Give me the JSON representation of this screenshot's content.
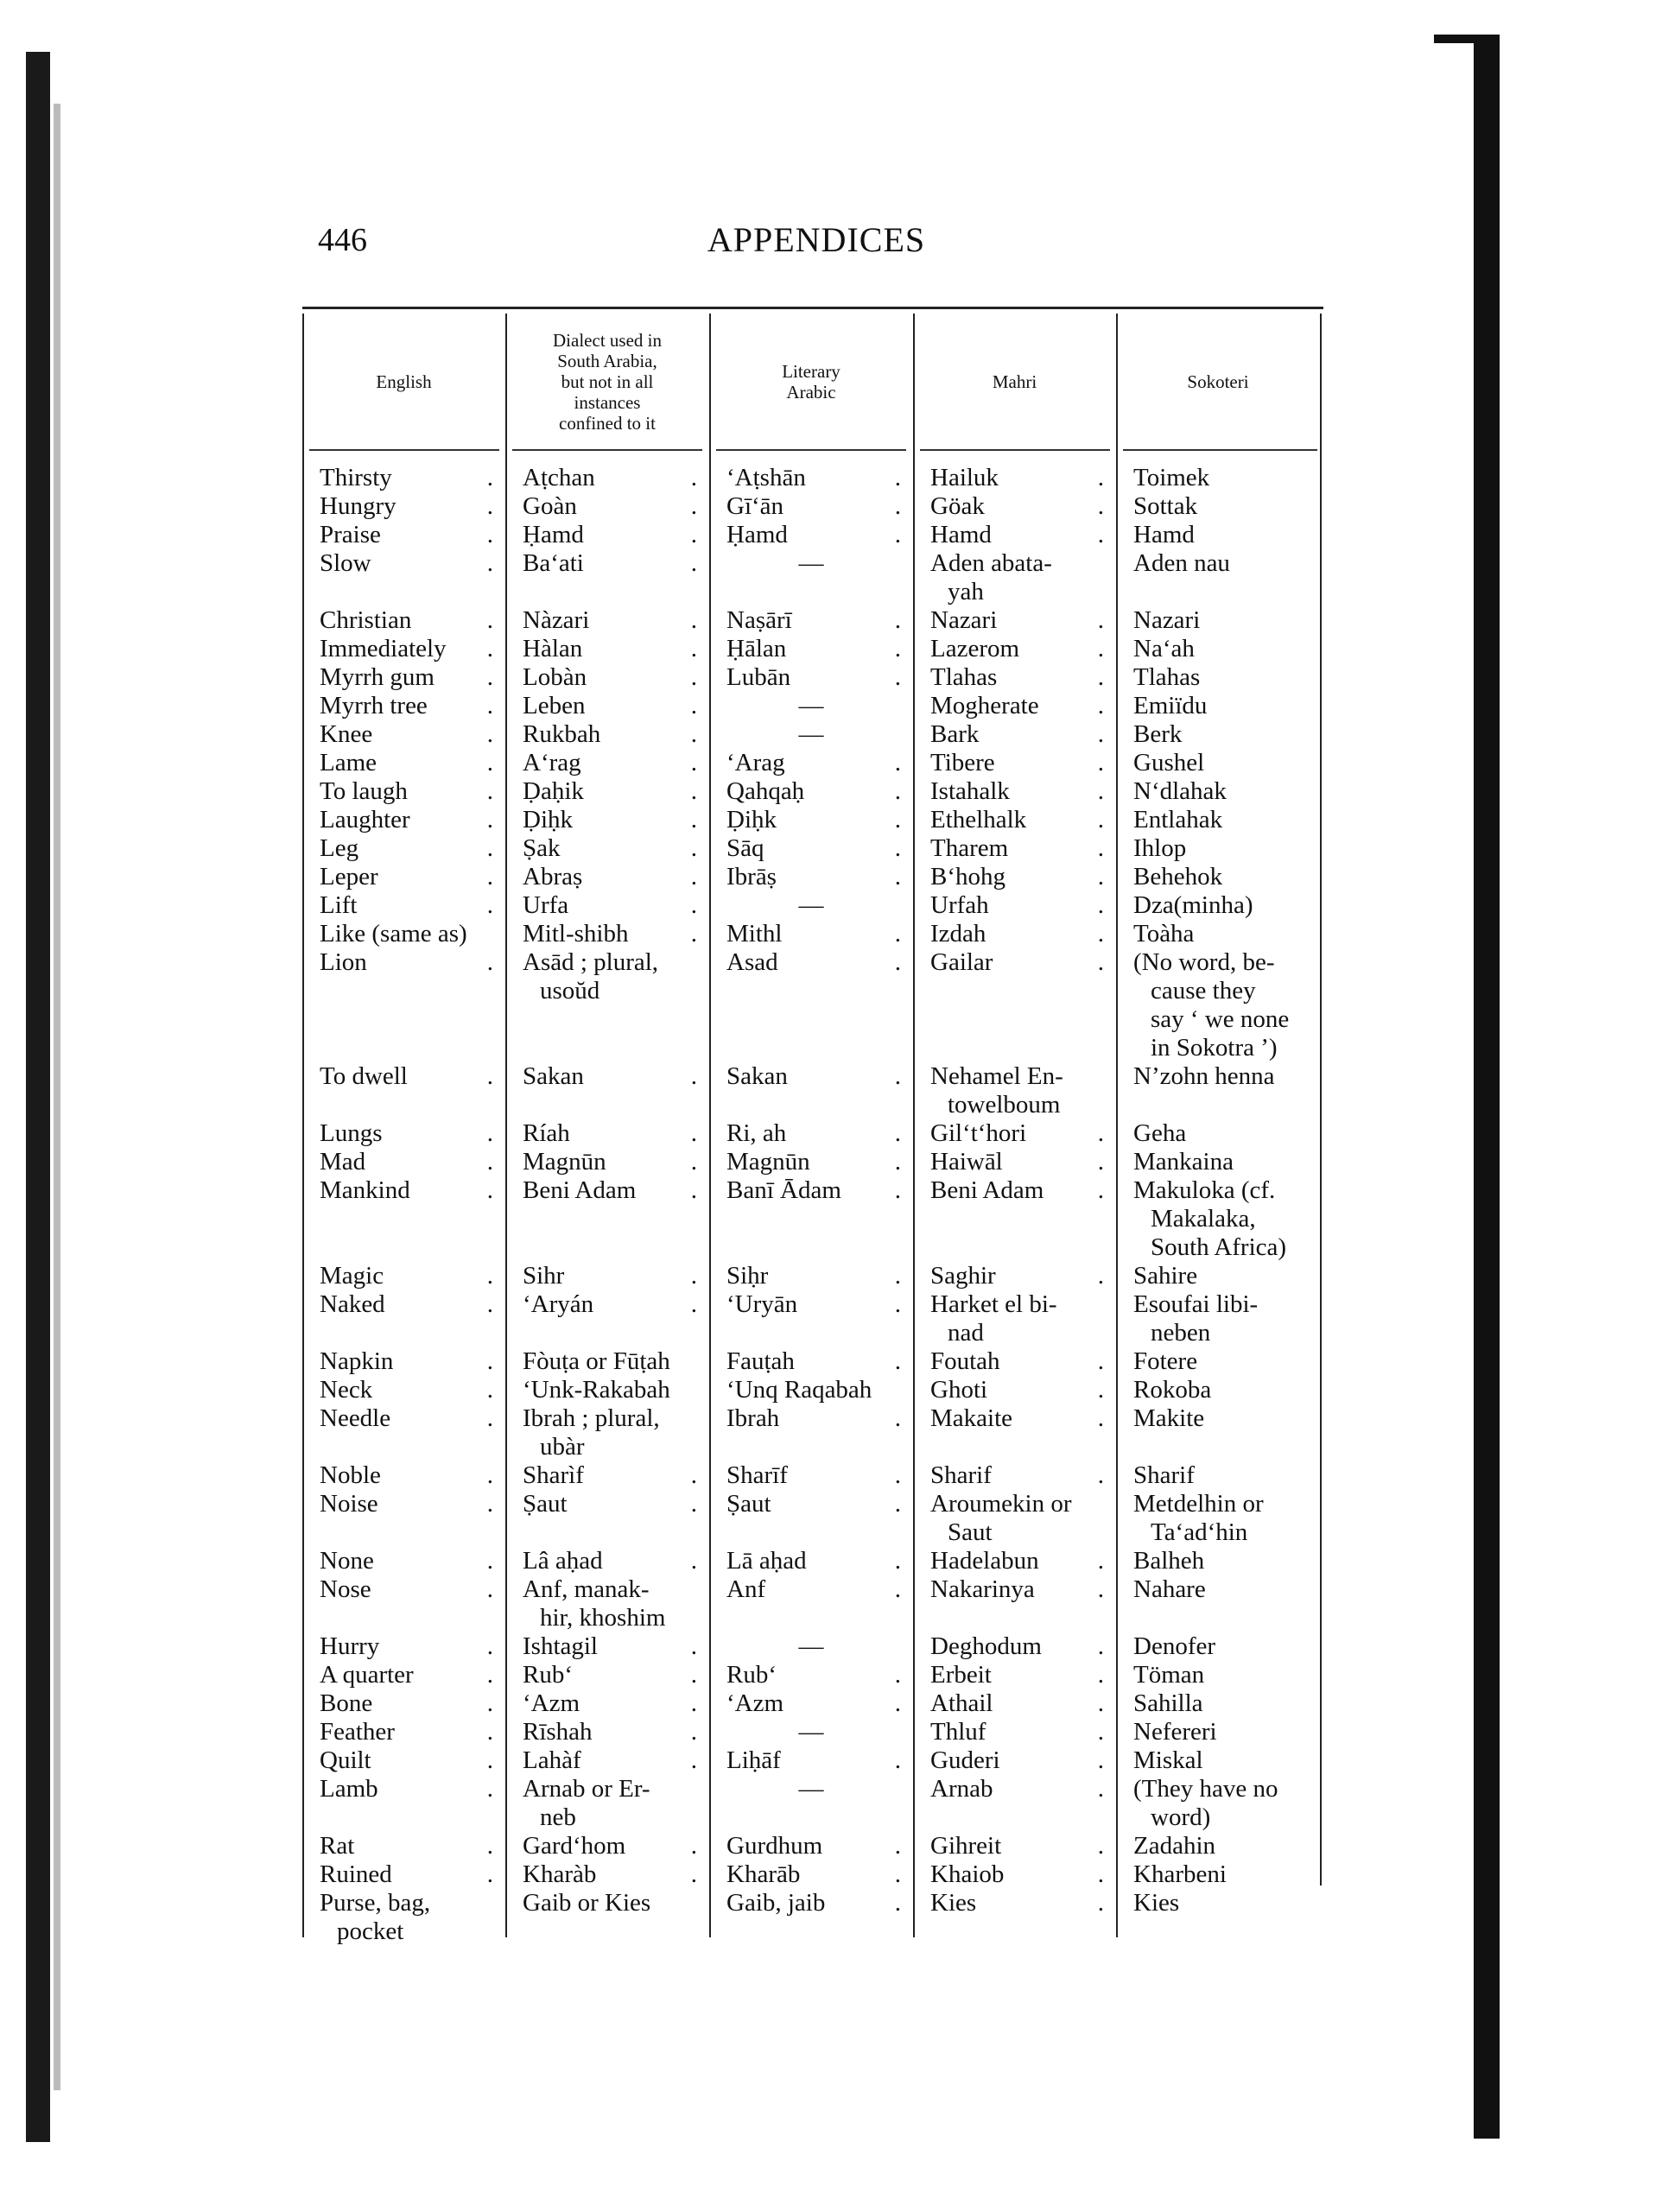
{
  "page": {
    "number": "446",
    "running_head": "APPENDICES"
  },
  "table": {
    "headers": [
      "English",
      "Dialect used in\nSouth Arabia,\nbut not in all\ninstances\nconfined to it",
      "Literary\nArabic",
      "Mahri",
      "Sokoteri"
    ],
    "rows": [
      [
        "Thirsty",
        "Aṭchan",
        "‘Aṭshān",
        "Hailuk",
        "Toimek"
      ],
      [
        "Hungry",
        "Goàn",
        "Gī‘ān",
        "Göak",
        "Sottak"
      ],
      [
        "Praise",
        "Ḥamd",
        "Ḥamd",
        "Hamd",
        "Hamd"
      ],
      [
        "Slow",
        "Ba‘ati",
        "—",
        "Aden abata-\nyah",
        "Aden nau"
      ],
      [
        "Christian",
        "Nàzari",
        "Naṣārī",
        "Nazari",
        "Nazari"
      ],
      [
        "Immediately",
        "Hàlan",
        "Ḥālan",
        "Lazerom",
        "Na‘ah"
      ],
      [
        "Myrrh gum",
        "Lobàn",
        "Lubān",
        "Tlahas",
        "Tlahas"
      ],
      [
        "Myrrh tree",
        "Leben",
        "—",
        "Mogherate",
        "Emiïdu"
      ],
      [
        "Knee",
        "Rukbah",
        "—",
        "Bark",
        "Berk"
      ],
      [
        "Lame",
        "A‘rag",
        "‘Arag",
        "Tibere",
        "Gushel"
      ],
      [
        "To laugh",
        "Ḍaḥik",
        "Qahqaḥ",
        "Istahalk",
        "N‘dlahak"
      ],
      [
        "Laughter",
        "Ḍiḥk",
        "Ḍiḥk",
        "Ethelhalk",
        "Entlahak"
      ],
      [
        "Leg",
        "Ṣak",
        "Sāq",
        "Tharem",
        "Ihlop"
      ],
      [
        "Leper",
        "Abraṣ",
        "Ibrāṣ",
        "B‘hohg",
        "Behehok"
      ],
      [
        "Lift",
        "Urfa",
        "—",
        "Urfah",
        "Dza(minha)"
      ],
      [
        "Like (same as)",
        "Mitl-shibh",
        "Mithl",
        "Izdah",
        "Toàha"
      ],
      [
        "Lion",
        "Asād ; plural,\nusoŭd",
        "Asad",
        "Gailar",
        "(No word, be-\ncause they\nsay ‘ we none\nin Sokotra ’)"
      ],
      [
        "To dwell",
        "Sakan",
        "Sakan",
        "Nehamel En-\ntowelboum",
        "N’zohn henna"
      ],
      [
        "Lungs",
        "Ríah",
        "Ri, ah",
        "Gil‘t‘hori",
        "Geha"
      ],
      [
        "Mad",
        "Magnūn",
        "Magnūn",
        "Haiwāl",
        "Mankaina"
      ],
      [
        "Mankind",
        "Beni Adam",
        "Banī Ādam",
        "Beni Adam",
        "Makuloka (cf.\nMakalaka,\nSouth Africa)"
      ],
      [
        "Magic",
        "Sihr",
        "Siḥr",
        "Saghir",
        "Sahire"
      ],
      [
        "Naked",
        "‘Aryán",
        "‘Uryān",
        "Harket el bi-\nnad",
        "Esoufai libi-\nneben"
      ],
      [
        "Napkin",
        "Fòuṭa or Fūṭah",
        "Fauṭah",
        "Foutah",
        "Fotere"
      ],
      [
        "Neck",
        "‘Unk-Rakabah",
        "‘Unq Raqabah",
        "Ghoti",
        "Rokoba"
      ],
      [
        "Needle",
        "Ibrah ; plural,\nubàr",
        "Ibrah",
        "Makaite",
        "Makite"
      ],
      [
        "Noble",
        "Sharìf",
        "Sharīf",
        "Sharif",
        "Sharif"
      ],
      [
        "Noise",
        "Ṣaut",
        "Ṣaut",
        "Aroumekin or\nSaut",
        "Metdelhin or\nTa‘ad‘hin"
      ],
      [
        "None",
        "Lâ aḥad",
        "Lā aḥad",
        "Hadelabun",
        "Balheh"
      ],
      [
        "Nose",
        "Anf, manak-\nhir, khoshim",
        "Anf",
        "Nakarinya",
        "Nahare"
      ],
      [
        "Hurry",
        "Ishtagil",
        "—",
        "Deghodum",
        "Denofer"
      ],
      [
        "A quarter",
        "Rub‘",
        "Rub‘",
        "Erbeit",
        "Töman"
      ],
      [
        "Bone",
        "‘Azm",
        "‘Azm",
        "Athail",
        "Sahilla"
      ],
      [
        "Feather",
        "Rīshah",
        "—",
        "Thluf",
        "Nefereri"
      ],
      [
        "Quilt",
        "Lahàf",
        "Liḥāf",
        "Guderi",
        "Miskal"
      ],
      [
        "Lamb",
        "Arnab or Er-\nneb",
        "—",
        "Arnab",
        "(They have no\nword)"
      ],
      [
        "Rat",
        "Gard‘hom",
        "Gurdhum",
        "Gihreit",
        "Zadahin"
      ],
      [
        "Ruined",
        "Kharàb",
        "Kharāb",
        "Khaiob",
        "Kharbeni"
      ],
      [
        "Purse, bag,\npocket",
        "Gaib or Kies",
        "Gaib, jaib",
        "Kies",
        "Kies"
      ]
    ]
  }
}
